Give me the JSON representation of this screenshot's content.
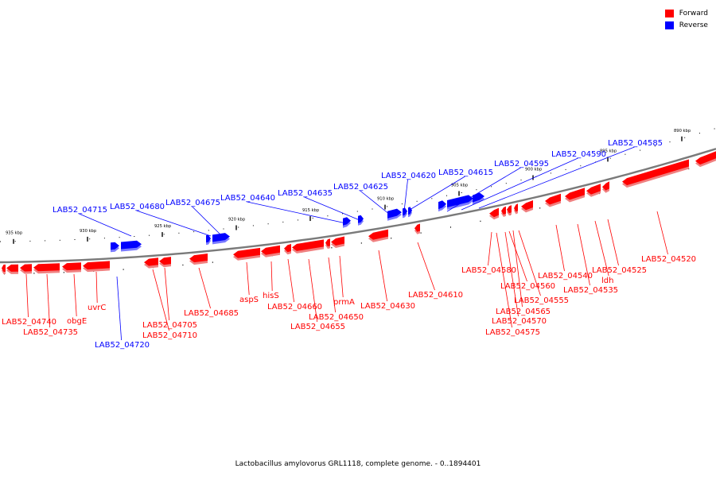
{
  "caption": "Lactobacillus amylovorus GRL1118, complete genome. - 0..1894401",
  "legend": [
    {
      "label": "Forward",
      "color": "#ff0000"
    },
    {
      "label": "Reverse",
      "color": "#0000ff"
    }
  ],
  "colors": {
    "forward": "#ff0000",
    "reverse": "#0000ff",
    "backbone": "#808080"
  },
  "scale_ticks": [
    {
      "label": "935 kbp"
    },
    {
      "label": "930 kbp"
    },
    {
      "label": "925 kbp"
    },
    {
      "label": "920 kbp"
    },
    {
      "label": "915 kbp"
    },
    {
      "label": "910 kbp"
    },
    {
      "label": "905 kbp"
    },
    {
      "label": "900 kbp"
    },
    {
      "label": "895 kbp"
    },
    {
      "label": "890 kbp"
    }
  ],
  "genes": [
    {
      "label": "LAB52_04715",
      "strand": "reverse"
    },
    {
      "label": "LAB52_04680",
      "strand": "reverse"
    },
    {
      "label": "LAB52_04675",
      "strand": "reverse"
    },
    {
      "label": "LAB52_04640",
      "strand": "reverse"
    },
    {
      "label": "LAB52_04635",
      "strand": "reverse"
    },
    {
      "label": "LAB52_04625",
      "strand": "reverse"
    },
    {
      "label": "LAB52_04620",
      "strand": "reverse"
    },
    {
      "label": "LAB52_04615",
      "strand": "reverse"
    },
    {
      "label": "LAB52_04595",
      "strand": "reverse"
    },
    {
      "label": "LAB52_04590",
      "strand": "reverse"
    },
    {
      "label": "LAB52_04585",
      "strand": "reverse"
    },
    {
      "label": "LAB52_04520",
      "strand": "forward"
    },
    {
      "label": "LAB52_04525",
      "strand": "forward"
    },
    {
      "label": "ldh",
      "strand": "forward"
    },
    {
      "label": "LAB52_04535",
      "strand": "forward"
    },
    {
      "label": "LAB52_04540",
      "strand": "forward"
    },
    {
      "label": "LAB52_04555",
      "strand": "forward"
    },
    {
      "label": "LAB52_04560",
      "strand": "forward"
    },
    {
      "label": "LAB52_04565",
      "strand": "forward"
    },
    {
      "label": "LAB52_04570",
      "strand": "forward"
    },
    {
      "label": "LAB52_04575",
      "strand": "forward"
    },
    {
      "label": "LAB52_04580",
      "strand": "forward"
    },
    {
      "label": "LAB52_04610",
      "strand": "forward"
    },
    {
      "label": "LAB52_04630",
      "strand": "forward"
    },
    {
      "label": "prmA",
      "strand": "forward"
    },
    {
      "label": "LAB52_04650",
      "strand": "forward"
    },
    {
      "label": "LAB52_04655",
      "strand": "forward"
    },
    {
      "label": "LAB52_04660",
      "strand": "forward"
    },
    {
      "label": "hisS",
      "strand": "forward"
    },
    {
      "label": "aspS",
      "strand": "forward"
    },
    {
      "label": "LAB52_04685",
      "strand": "forward"
    },
    {
      "label": "LAB52_04705",
      "strand": "forward"
    },
    {
      "label": "LAB52_04710",
      "strand": "forward"
    },
    {
      "label": "uvrC",
      "strand": "forward"
    },
    {
      "label": "obgE",
      "strand": "forward"
    },
    {
      "label": "LAB52_04735",
      "strand": "forward"
    },
    {
      "label": "LAB52_04740",
      "strand": "forward"
    },
    {
      "label": "LAB52_04720",
      "strand": "reverse"
    }
  ]
}
